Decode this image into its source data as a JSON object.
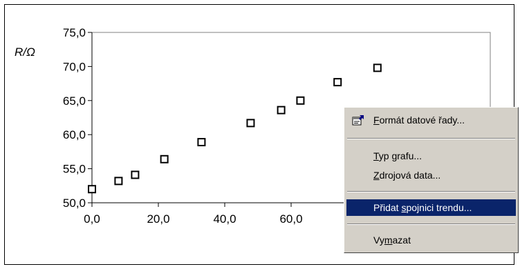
{
  "chart_data": {
    "type": "scatter",
    "ylabel": "R/Ω",
    "xlabel": "",
    "xlim": [
      0,
      120
    ],
    "ylim": [
      50,
      75
    ],
    "x_ticks": [
      "0,0",
      "20,0",
      "40,0",
      "60,0"
    ],
    "y_ticks": [
      "50,0",
      "55,0",
      "60,0",
      "65,0",
      "70,0",
      "75,0"
    ],
    "points": [
      {
        "x": 0.0,
        "y": 52.0
      },
      {
        "x": 8.0,
        "y": 53.2
      },
      {
        "x": 13.0,
        "y": 54.1
      },
      {
        "x": 21.8,
        "y": 56.4
      },
      {
        "x": 33.0,
        "y": 58.9
      },
      {
        "x": 47.8,
        "y": 61.7
      },
      {
        "x": 57.0,
        "y": 63.6
      },
      {
        "x": 62.8,
        "y": 65.0
      },
      {
        "x": 74.0,
        "y": 67.7
      },
      {
        "x": 86.0,
        "y": 69.8
      }
    ],
    "grid": false
  },
  "context_menu": {
    "items": [
      {
        "pre": "",
        "key": "F",
        "post": "ormát datové řady...",
        "icon": "format-properties-icon"
      },
      {
        "pre": "",
        "key": "T",
        "post": "yp grafu..."
      },
      {
        "pre": "",
        "key": "Z",
        "post": "drojová data..."
      },
      {
        "pre": "Přidat ",
        "key": "s",
        "post": "pojnici trendu..."
      },
      {
        "pre": "Vy",
        "key": "m",
        "post": "azat"
      }
    ]
  }
}
